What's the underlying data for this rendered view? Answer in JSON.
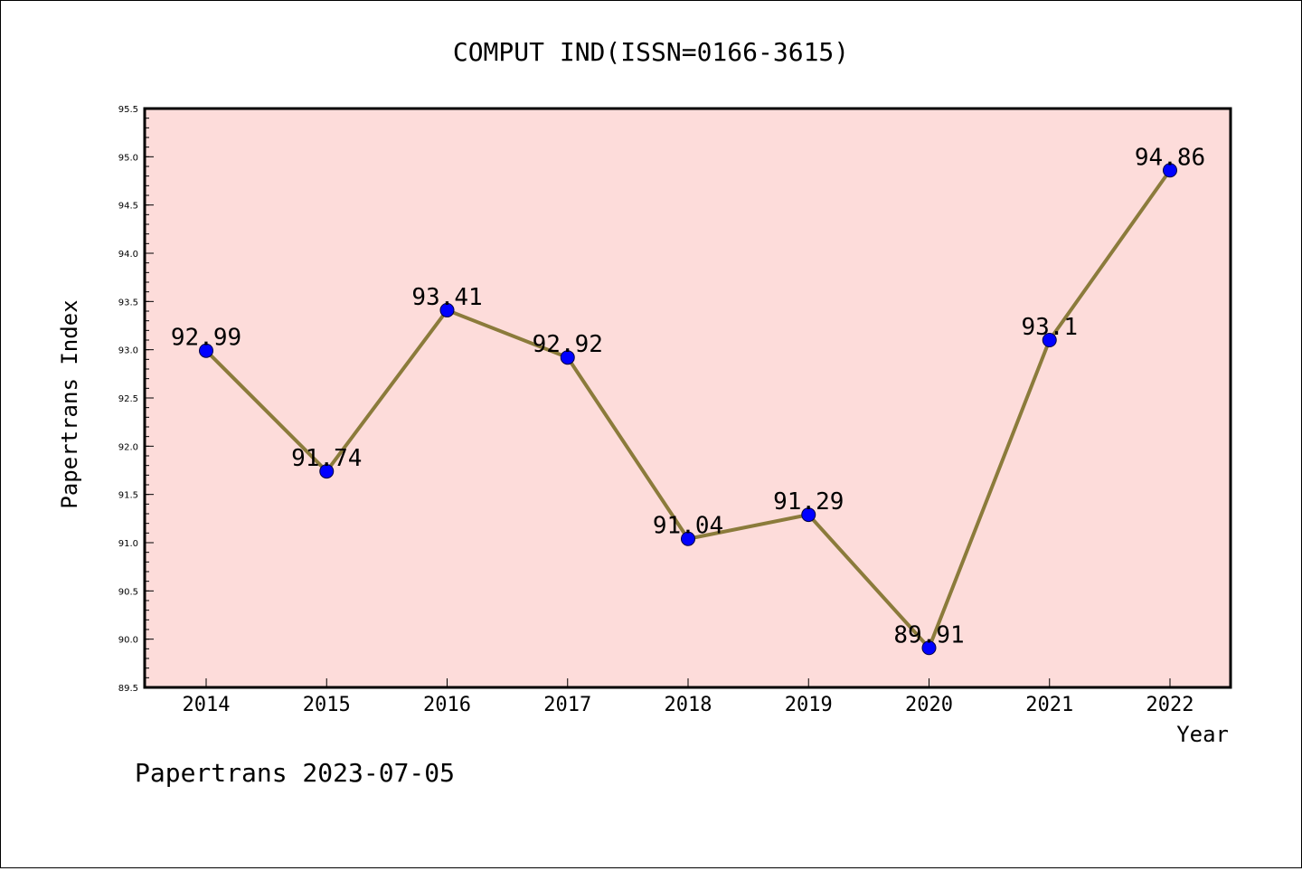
{
  "chart_data": {
    "type": "line",
    "title": "COMPUT IND(ISSN=0166-3615)",
    "xlabel": "Year",
    "ylabel": "Papertrans Index",
    "categories": [
      "2014",
      "2015",
      "2016",
      "2017",
      "2018",
      "2019",
      "2020",
      "2021",
      "2022"
    ],
    "values": [
      92.99,
      91.74,
      93.41,
      92.92,
      91.04,
      91.29,
      89.91,
      93.1,
      94.86
    ],
    "data_labels": [
      "92.99",
      "91.74",
      "93.41",
      "92.92",
      "91.04",
      "91.29",
      "89.91",
      "93.1",
      "94.86"
    ],
    "ylim": [
      89.5,
      95.5
    ],
    "yticks": [
      "89.5",
      "90.0",
      "90.5",
      "91.0",
      "91.5",
      "92.0",
      "92.5",
      "93.0",
      "93.5",
      "94.0",
      "94.5",
      "95.0",
      "95.5"
    ],
    "grid": false,
    "legend": "none",
    "colors": {
      "plot_background": "#FDDCDA",
      "line": "#8B7B3B",
      "marker": "#0000FF",
      "axes": "#000000"
    }
  },
  "footer": "Papertrans 2023-07-05"
}
